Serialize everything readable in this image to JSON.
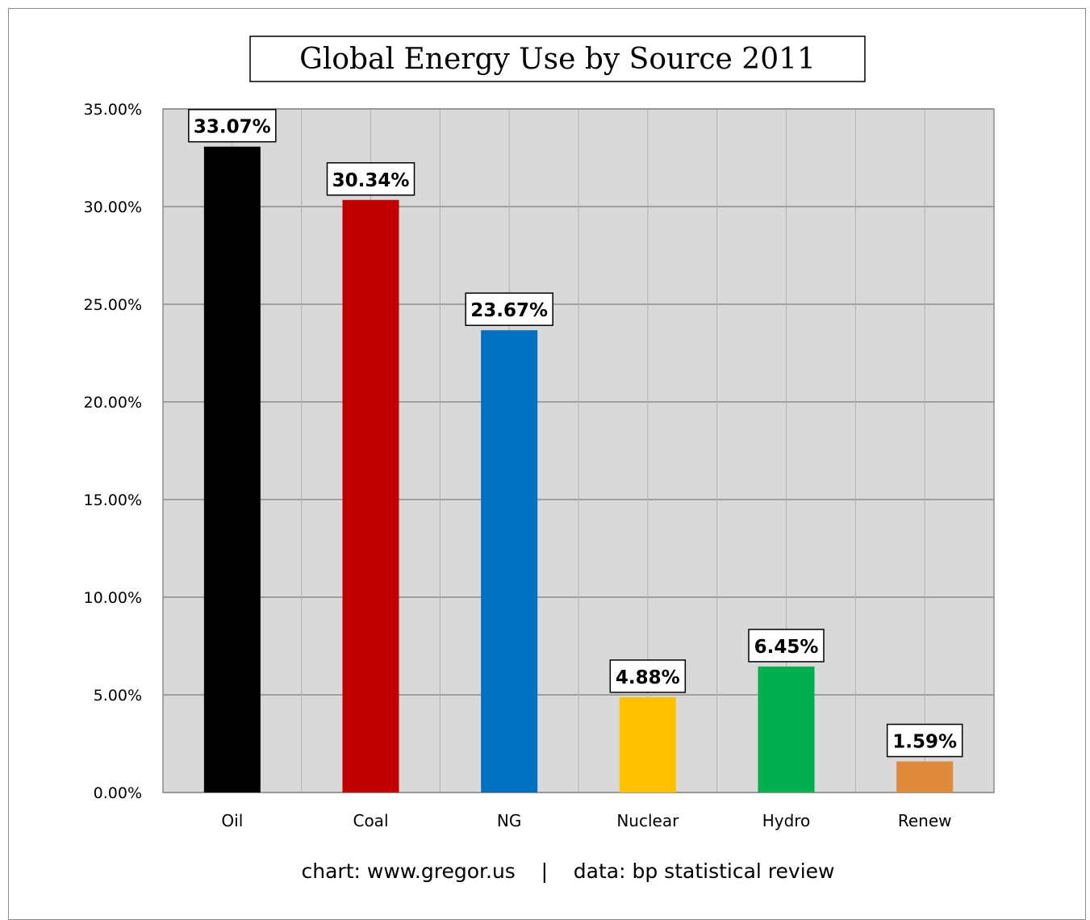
{
  "chart_data": {
    "type": "bar",
    "title": "Global Energy Use by Source 2011",
    "categories": [
      "Oil",
      "Coal",
      "NG",
      "Nuclear",
      "Hydro",
      "Renew"
    ],
    "values": [
      33.07,
      30.34,
      23.67,
      4.88,
      6.45,
      1.59
    ],
    "data_labels": [
      "33.07%",
      "30.34%",
      "23.67%",
      "4.88%",
      "6.45%",
      "1.59%"
    ],
    "colors": [
      "#000000",
      "#c00000",
      "#0070c0",
      "#ffc000",
      "#00b050",
      "#e08a3c"
    ],
    "ylim": [
      0,
      35
    ],
    "y_ticks": [
      0,
      5,
      10,
      15,
      20,
      25,
      30,
      35
    ],
    "y_tick_labels": [
      "0.00%",
      "5.00%",
      "10.00%",
      "15.00%",
      "20.00%",
      "25.00%",
      "30.00%",
      "35.00%"
    ],
    "xlabel": "",
    "ylabel": "",
    "grid": true,
    "plot_background": "#d9d9d9",
    "footer": "chart: www.gregor.us    |    data: bp statistical review"
  }
}
